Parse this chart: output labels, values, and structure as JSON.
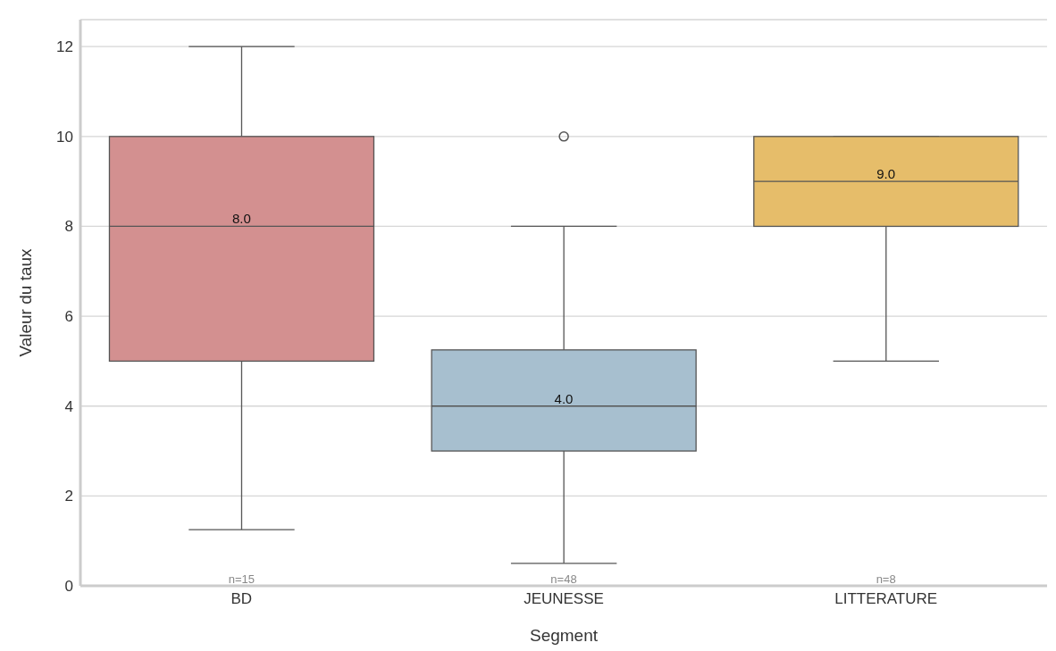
{
  "chart_data": {
    "type": "box",
    "xlabel": "Segment",
    "ylabel": "Valeur du taux",
    "categories": [
      "BD",
      "JEUNESSE",
      "LITTERATURE"
    ],
    "colors": [
      "#d39090",
      "#a7bfcf",
      "#e6bd6a"
    ],
    "boxes": [
      {
        "low": 1.25,
        "q1": 5,
        "median": 8,
        "q3": 10,
        "high": 12
      },
      {
        "low": 0.5,
        "q1": 3,
        "median": 4,
        "q3": 5.25,
        "high": 8,
        "outliers": [
          10
        ]
      },
      {
        "low": 5,
        "q1": 8,
        "median": 9,
        "q3": 10,
        "high": 10
      }
    ],
    "ylim": [
      0,
      12.6
    ],
    "yticks": [
      0,
      2,
      4,
      6,
      8,
      10,
      12
    ],
    "grid": "y",
    "annotations": [
      {
        "text": "8.0",
        "x": "BD",
        "y": 8
      },
      {
        "text": "4.0",
        "x": "JEUNESSE",
        "y": 4
      },
      {
        "text": "9.0",
        "x": "LITTERATURE",
        "y": 9
      },
      "n=15",
      "n=48",
      "n=8"
    ]
  }
}
